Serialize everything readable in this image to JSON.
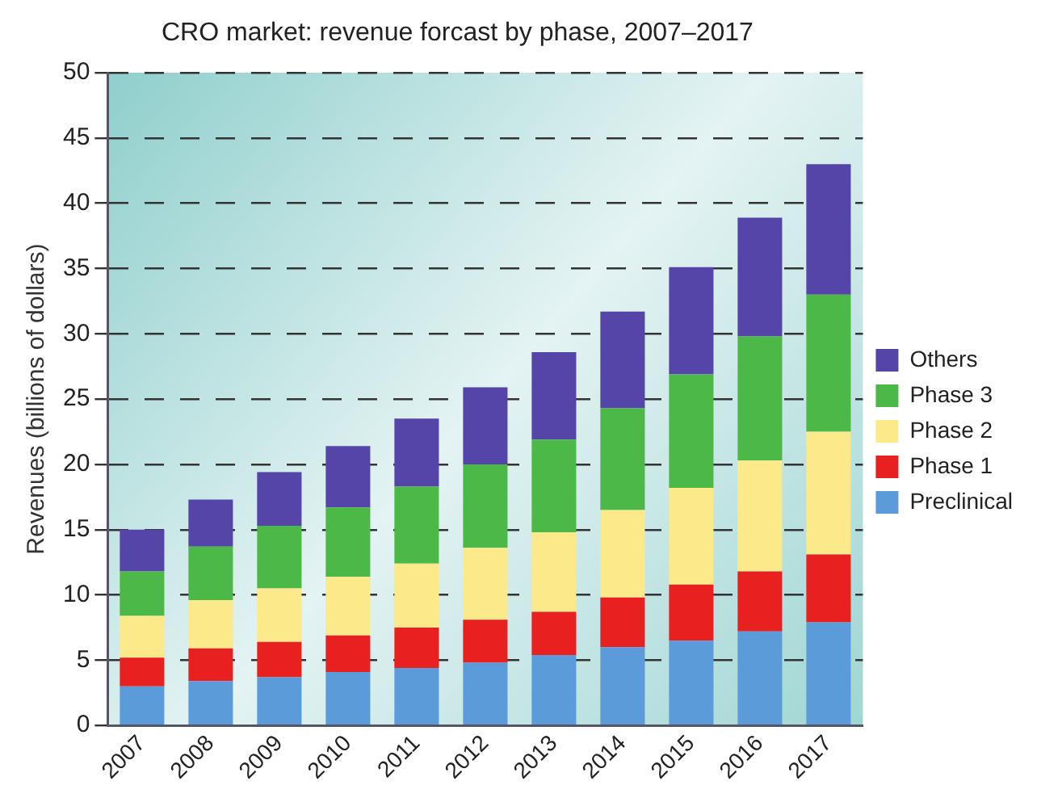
{
  "chart_data": {
    "type": "bar",
    "title": "CRO market: revenue forcast by phase, 2007–2017",
    "ylabel": "Revenues (billions of dollars)",
    "categories": [
      "2007",
      "2008",
      "2009",
      "2010",
      "2011",
      "2012",
      "2013",
      "2014",
      "2015",
      "2016",
      "2017"
    ],
    "stacked": true,
    "series": [
      {
        "name": "Preclinical",
        "color": "#5b9bd9",
        "values": [
          3.0,
          3.4,
          3.7,
          4.1,
          4.4,
          4.8,
          5.4,
          6.0,
          6.5,
          7.2,
          7.9
        ]
      },
      {
        "name": "Phase 1",
        "color": "#e8201f",
        "values": [
          2.2,
          2.5,
          2.7,
          2.8,
          3.1,
          3.3,
          3.3,
          3.8,
          4.3,
          4.6,
          5.2
        ]
      },
      {
        "name": "Phase 2",
        "color": "#fbe98a",
        "values": [
          3.2,
          3.7,
          4.1,
          4.5,
          4.9,
          5.5,
          6.1,
          6.7,
          7.4,
          8.5,
          9.4
        ]
      },
      {
        "name": "Phase 3",
        "color": "#4cb848",
        "values": [
          3.4,
          4.1,
          4.8,
          5.3,
          5.9,
          6.4,
          7.1,
          7.8,
          8.7,
          9.5,
          10.5
        ]
      },
      {
        "name": "Others",
        "color": "#5645a8",
        "values": [
          3.2,
          3.6,
          4.1,
          4.7,
          5.2,
          5.9,
          6.7,
          7.4,
          8.2,
          9.1,
          10.0
        ]
      }
    ],
    "ylim": [
      0,
      50
    ],
    "yticks": [
      0,
      5,
      10,
      15,
      20,
      25,
      30,
      35,
      40,
      45,
      50
    ],
    "grid": "y",
    "line_style": "dashed",
    "legend": "right"
  }
}
